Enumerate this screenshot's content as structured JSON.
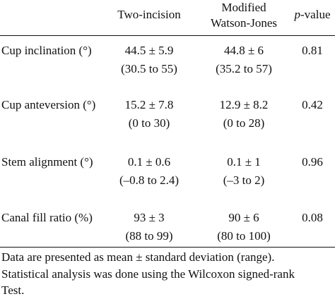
{
  "table": {
    "headers": {
      "col1": "Two-incision",
      "col2_line1": "Modified",
      "col2_line2": "Watson-Jones",
      "col3_italic": "p",
      "col3_rest": "-value"
    },
    "rows": [
      {
        "label": "Cup inclination (°)",
        "two_incision_mean": "44.5 ± 5.9",
        "two_incision_range": "(30.5 to 55)",
        "watson_jones_mean": "44.8 ± 6",
        "watson_jones_range": "(35.2 to 57)",
        "p_value": "0.81"
      },
      {
        "label": "Cup anteversion (°)",
        "two_incision_mean": "15.2 ± 7.8",
        "two_incision_range": "(0 to 30)",
        "watson_jones_mean": "12.9 ± 8.2",
        "watson_jones_range": "(0 to 28)",
        "p_value": "0.42"
      },
      {
        "label": "Stem alignment (°)",
        "two_incision_mean": "0.1 ± 0.6",
        "two_incision_range": "(–0.8 to 2.4)",
        "watson_jones_mean": "0.1 ± 1",
        "watson_jones_range": "(–3 to 2)",
        "p_value": "0.96"
      },
      {
        "label": "Canal fill ratio (%)",
        "two_incision_mean": "93 ± 3",
        "two_incision_range": "(88 to 99)",
        "watson_jones_mean": "90 ± 6",
        "watson_jones_range": "(80 to 100)",
        "p_value": "0.08"
      }
    ],
    "footnotes": [
      "Data are presented as mean ± standard deviation (range).",
      "Statistical analysis was done using the Wilcoxon signed-rank",
      "Test."
    ]
  }
}
